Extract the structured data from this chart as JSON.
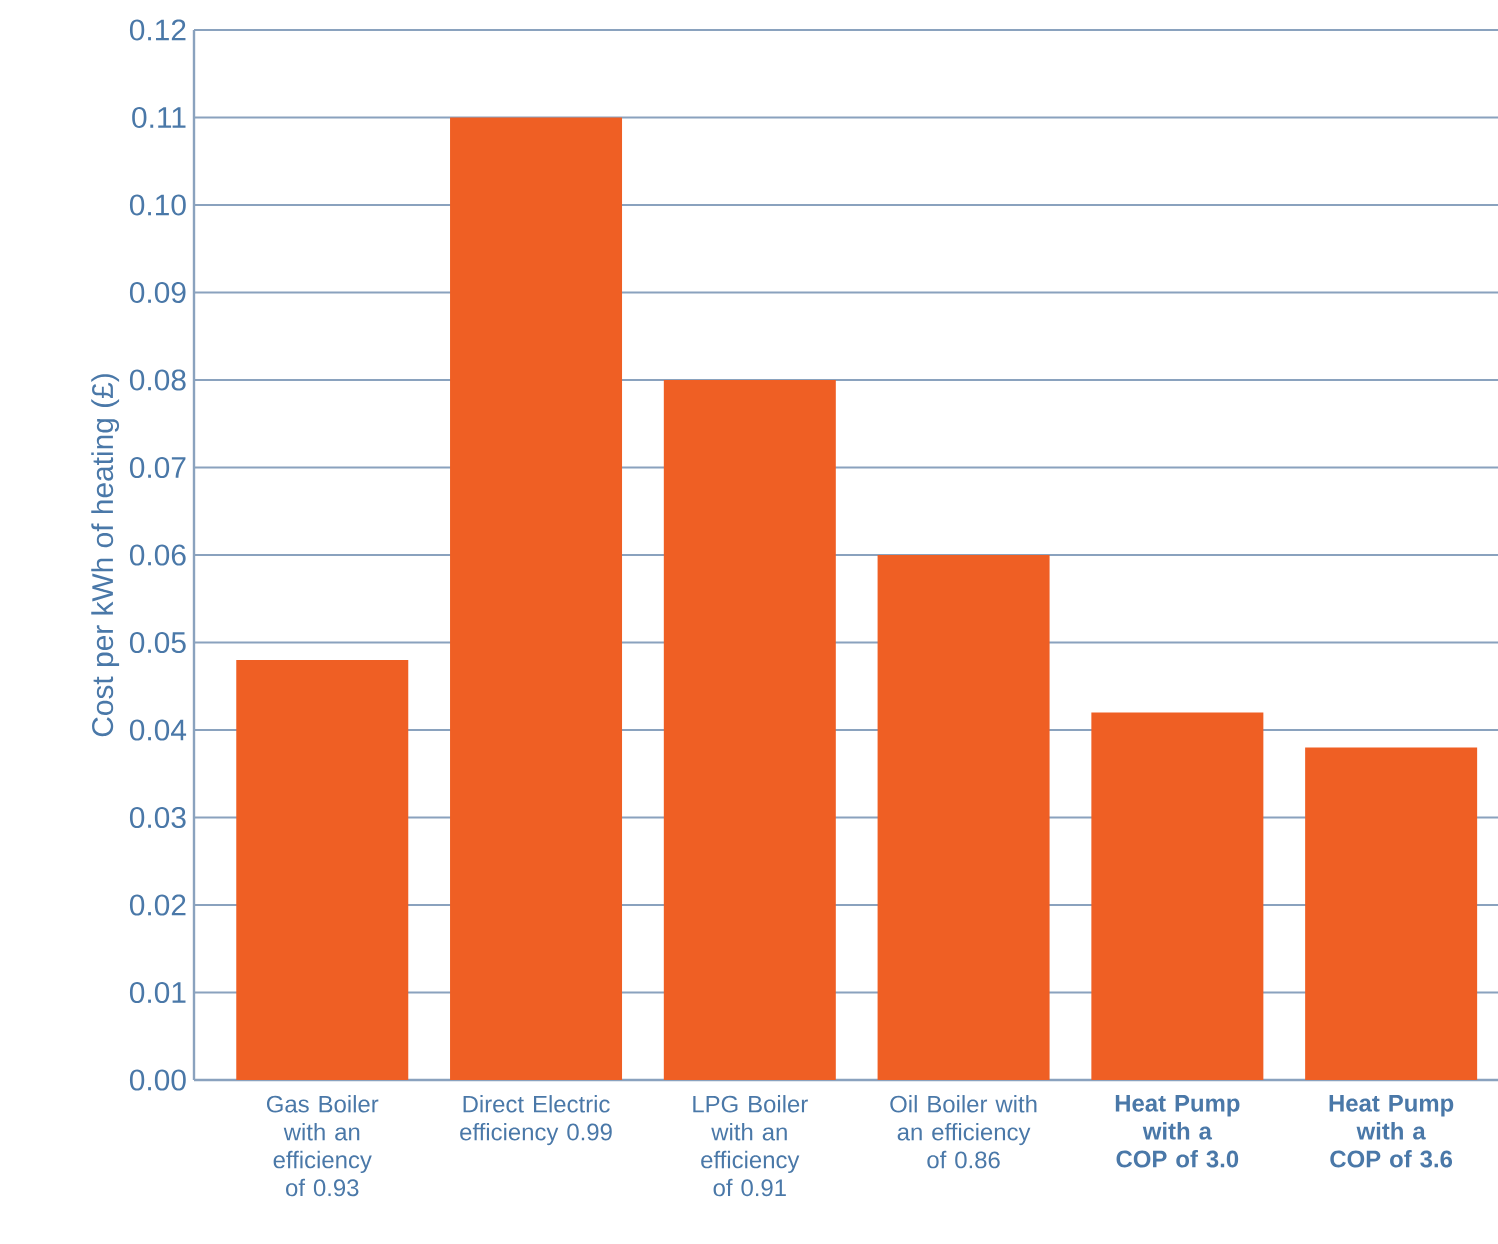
{
  "chart_data": {
    "type": "bar",
    "ylabel": "Cost per kWh of heating (£)",
    "categories": [
      "Gas Boiler with an efficiency of 0.93",
      "Direct Electric efficiency 0.99",
      "LPG Boiler with an efficiency of 0.91",
      "Oil Boiler with an efficiency of 0.86",
      "Heat Pump with a COP of 3.0",
      "Heat Pump with a COP of 3.6"
    ],
    "values": [
      0.048,
      0.11,
      0.08,
      0.06,
      0.042,
      0.038
    ],
    "color": "#ef5f24",
    "ylim": [
      0,
      0.12
    ],
    "yticks": [
      {
        "value": 0,
        "label": "0.00"
      },
      0.01,
      0.02,
      0.03,
      0.04,
      0.05,
      0.06,
      0.07,
      0.08,
      0.09,
      {
        "value": 0.1,
        "label": "0.10"
      },
      0.11,
      0.12
    ],
    "grid": "y"
  }
}
